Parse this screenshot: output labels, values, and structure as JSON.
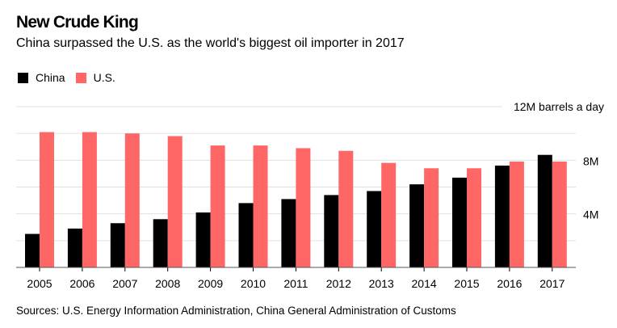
{
  "title": "New Crude King",
  "subtitle": "China surpassed the U.S. as the world's biggest oil importer in 2017",
  "source": "Sources: U.S. Energy Information Administration, China General Administration of Customs",
  "colors": {
    "china": "#000000",
    "us": "#ff6666",
    "grid": "#e0e0e0"
  },
  "chart_data": {
    "type": "bar",
    "title": "New Crude King",
    "ylabel": "12M barrels a day",
    "ylim": [
      0,
      12
    ],
    "yticks": [
      {
        "value": 12,
        "label": "12M barrels a day"
      },
      {
        "value": 8,
        "label": "8M"
      },
      {
        "value": 4,
        "label": "4M"
      }
    ],
    "gridlines": [
      2,
      4,
      6,
      8,
      10,
      12
    ],
    "legend": "top-left",
    "categories": [
      "2005",
      "2006",
      "2007",
      "2008",
      "2009",
      "2010",
      "2011",
      "2012",
      "2013",
      "2014",
      "2015",
      "2016",
      "2017"
    ],
    "series": [
      {
        "name": "China",
        "color": "#000000",
        "values": [
          2.5,
          2.9,
          3.3,
          3.6,
          4.1,
          4.8,
          5.1,
          5.4,
          5.7,
          6.2,
          6.7,
          7.6,
          8.4
        ]
      },
      {
        "name": "U.S.",
        "color": "#ff6666",
        "values": [
          10.1,
          10.1,
          10.0,
          9.8,
          9.1,
          9.1,
          8.9,
          8.7,
          7.8,
          7.4,
          7.4,
          7.9,
          7.9
        ]
      }
    ]
  }
}
